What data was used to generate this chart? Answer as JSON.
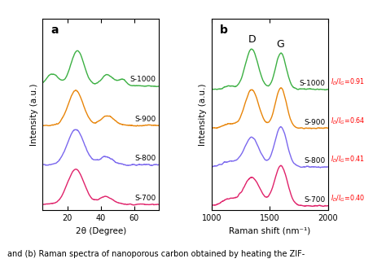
{
  "panel_a_label": "a",
  "panel_b_label": "b",
  "colors": {
    "S-1000": "#3cb043",
    "S-900": "#e8850a",
    "S-800": "#7B68EE",
    "S-700": "#e0226a"
  },
  "labels": [
    "S-700",
    "S-800",
    "S-900",
    "S-1000"
  ],
  "panel_a": {
    "xlabel": "2θ (Degree)",
    "ylabel": "Intensity (a.u.)",
    "xlim": [
      5,
      75
    ],
    "xticks": [
      20,
      40,
      60
    ]
  },
  "panel_b": {
    "xlabel": "Raman shift (nm⁻¹)",
    "ylabel": "Intensity (a.u.)",
    "xlim": [
      1000,
      2000
    ],
    "xticks": [
      1000,
      1500,
      2000
    ],
    "d_peak": 1345,
    "g_peak": 1590,
    "ratios": {
      "S-700": "$I_D$/$I_G$=0.40",
      "S-800": "$I_D$/$I_G$=0.41",
      "S-900": "$I_D$/$I_G$=0.64",
      "S-1000": "$I_D$/$I_G$=0.91"
    },
    "ratio_color": "#FF0000"
  },
  "caption": "and (b) Raman spectra of nanoporous carbon obtained by heating the ZIF-",
  "background_color": "#FFFFFF"
}
